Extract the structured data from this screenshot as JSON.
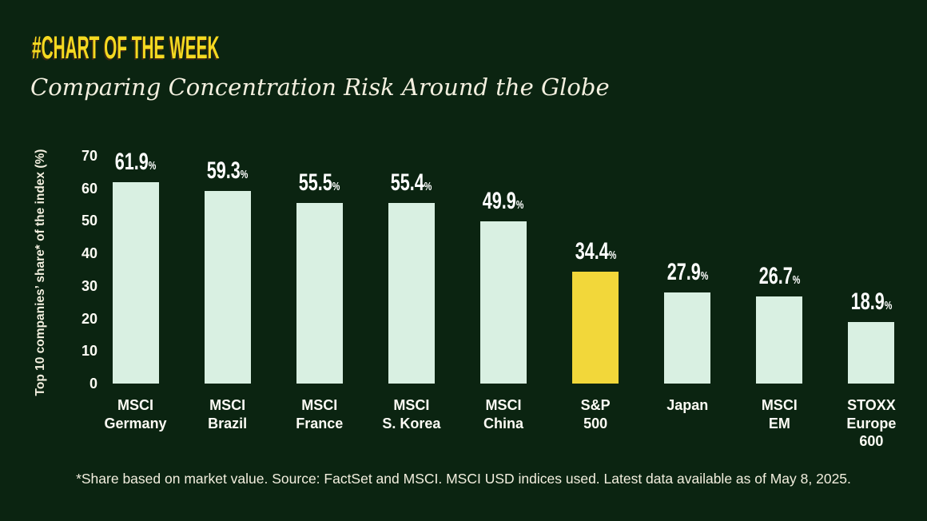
{
  "kicker": "#CHART OF THE WEEK",
  "title": "Comparing Concentration Risk Around the Globe",
  "footnote": "*Share based on market value. Source: FactSet and MSCI. MSCI USD indices used. Latest data available as of May 8, 2025.",
  "colors": {
    "background": "#0b2411",
    "kicker_yellow": "#f5d921",
    "text_cream": "#f3efdf",
    "bar_mint": "#d9f0e2",
    "bar_highlight_yellow": "#f2d73a"
  },
  "chart_data": {
    "type": "bar",
    "title": "Comparing Concentration Risk Around the Globe",
    "categories": [
      "MSCI Germany",
      "MSCI Brazil",
      "MSCI France",
      "MSCI S. Korea",
      "MSCI China",
      "S&P 500",
      "Japan",
      "MSCI EM",
      "STOXX Europe 600"
    ],
    "category_lines": [
      [
        "MSCI",
        "Germany"
      ],
      [
        "MSCI",
        "Brazil"
      ],
      [
        "MSCI",
        "France"
      ],
      [
        "MSCI",
        "S. Korea"
      ],
      [
        "MSCI",
        "China"
      ],
      [
        "S&P",
        "500"
      ],
      [
        "Japan"
      ],
      [
        "MSCI",
        "EM"
      ],
      [
        "STOXX",
        "Europe",
        "600"
      ]
    ],
    "values": [
      61.9,
      59.3,
      55.5,
      55.4,
      49.9,
      34.4,
      27.9,
      26.7,
      18.9
    ],
    "value_suffix": "%",
    "highlight_index": 5,
    "highlight_category": "S&P 500",
    "xlabel": "",
    "ylabel": "Top 10 companies’ share* of the index (%)",
    "ylim": [
      0,
      70
    ],
    "yticks": [
      70,
      60,
      50,
      40,
      30,
      20,
      10,
      0
    ],
    "grid": false,
    "legend": false
  }
}
